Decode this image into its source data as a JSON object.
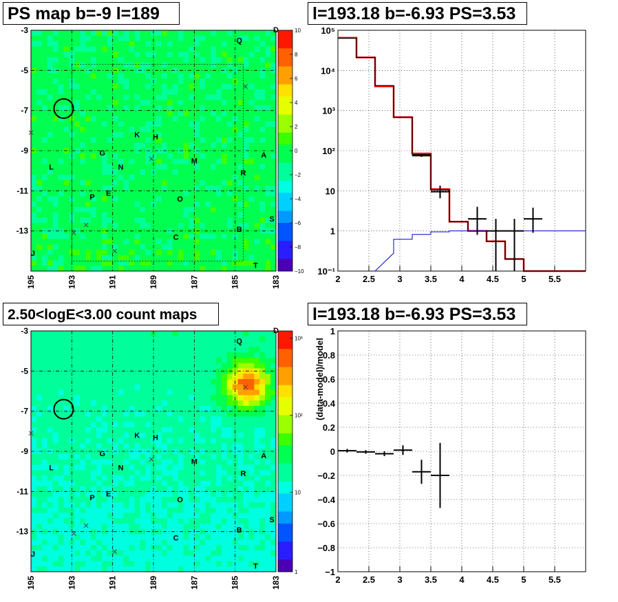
{
  "panels": {
    "ps_map": {
      "title": "PS map b=-9 l=189",
      "x_ticks": [
        "195",
        "193",
        "191",
        "189",
        "187",
        "185",
        "183"
      ],
      "y_ticks": [
        "-3",
        "-5",
        "-7",
        "-9",
        "-11",
        "-13"
      ],
      "colorbar_ticks": [
        "10",
        "8",
        "6",
        "4",
        "2",
        "0",
        "−2",
        "−4",
        "−6",
        "−8",
        "−10"
      ],
      "colorbar_letter": "D"
    },
    "count_map": {
      "title": "2.50<logE<3.00 count maps",
      "x_ticks": [
        "195",
        "193",
        "191",
        "189",
        "187",
        "185",
        "183"
      ],
      "y_ticks": [
        "-3",
        "-5",
        "-7",
        "-9",
        "-11",
        "-13"
      ],
      "colorbar_ticks": [
        "10³",
        "10²",
        "10",
        "1"
      ],
      "colorbar_letter": "D"
    },
    "spectrum": {
      "title": "l=193.18 b=-6.93 PS=3.53"
    },
    "residual": {
      "title": "l=193.18 b=-6.93 PS=3.53"
    }
  },
  "source_labels": [
    {
      "name": "Q",
      "l": 184.8,
      "b": -3.5
    },
    {
      "name": "K",
      "l": 189.8,
      "b": -8.2
    },
    {
      "name": "H",
      "l": 188.9,
      "b": -8.3
    },
    {
      "name": "M",
      "l": 187.0,
      "b": -9.5
    },
    {
      "name": "A",
      "l": 183.6,
      "b": -9.2
    },
    {
      "name": "G",
      "l": 191.5,
      "b": -9.1
    },
    {
      "name": "L",
      "l": 194.0,
      "b": -9.8
    },
    {
      "name": "N",
      "l": 190.6,
      "b": -9.8
    },
    {
      "name": "R",
      "l": 184.6,
      "b": -10.1
    },
    {
      "name": "E",
      "l": 191.2,
      "b": -11.1
    },
    {
      "name": "P",
      "l": 192.0,
      "b": -11.3
    },
    {
      "name": "O",
      "l": 187.7,
      "b": -11.4
    },
    {
      "name": "S",
      "l": 183.2,
      "b": -12.4
    },
    {
      "name": "B",
      "l": 184.8,
      "b": -12.9
    },
    {
      "name": "C",
      "l": 187.9,
      "b": -13.3
    },
    {
      "name": "J",
      "l": 194.9,
      "b": -14.1
    },
    {
      "name": "T",
      "l": 184.0,
      "b": -14.7
    }
  ],
  "chart_data": [
    {
      "type": "heatmap",
      "title": "PS map b=-9 l=189",
      "xlabel": "",
      "ylabel": "",
      "xlim": [
        195,
        183
      ],
      "ylim": [
        -15,
        -3
      ],
      "zlim": [
        -10,
        10
      ],
      "grid": true,
      "circle": {
        "l": 193.4,
        "b": -6.9
      }
    },
    {
      "type": "line",
      "title": "l=193.18 b=-6.93 PS=3.53",
      "xlim": [
        2,
        6
      ],
      "ylim": [
        0.1,
        100000
      ],
      "log_y": true,
      "grid": true,
      "y_tick_labels": [
        "10⁻¹",
        "1",
        "10",
        "10²",
        "10³",
        "10⁴",
        "10⁵"
      ],
      "x_ticks": [
        2,
        2.5,
        3,
        3.5,
        4,
        4.5,
        5,
        5.5
      ],
      "series": [
        {
          "color": "#ff0000",
          "style": "step",
          "edges": [
            2.0,
            2.3,
            2.6,
            2.9,
            3.2,
            3.5,
            3.8,
            4.1,
            4.4,
            4.7,
            5.0,
            6.0
          ],
          "values": [
            65000,
            21000,
            4000,
            680,
            85,
            11,
            1.7,
            1.0,
            0.55,
            0.2,
            0.1
          ]
        },
        {
          "color": "#000000",
          "style": "step",
          "edges": [
            2.0,
            2.3,
            2.6,
            2.9,
            3.2,
            3.5,
            3.8,
            4.1,
            4.4,
            4.7,
            5.0,
            6.0
          ],
          "values": [
            63000,
            21000,
            4200,
            680,
            80,
            10.5,
            1.7,
            1.0,
            0.55,
            0.2,
            0.1
          ]
        },
        {
          "color": "#0000cc",
          "style": "step",
          "edges": [
            2.6,
            2.9,
            3.2,
            3.5,
            3.8,
            4.1,
            4.4,
            4.7,
            5.0,
            5.3,
            6.0
          ],
          "values": [
            0.28,
            0.62,
            0.82,
            0.95,
            1.0,
            1.0,
            1.0,
            1.0,
            1.0,
            1.0
          ]
        },
        {
          "color": "#000000",
          "style": "points",
          "x": [
            3.35,
            3.65,
            4.25,
            4.55,
            4.85,
            5.15
          ],
          "y": [
            75,
            9.5,
            2.0,
            1.0,
            1.0,
            2.0
          ],
          "xerr": [
            0.15,
            0.15,
            0.15,
            0.15,
            0.15,
            0.15
          ],
          "ylow": [
            70,
            6.5,
            0.8,
            0.1,
            0.1,
            0.9
          ],
          "yhigh": [
            80,
            13.5,
            4.0,
            2.0,
            2.0,
            3.8
          ]
        }
      ]
    },
    {
      "type": "heatmap",
      "title": "2.50<logE<3.00 count maps",
      "xlabel": "",
      "ylabel": "",
      "xlim": [
        195,
        183
      ],
      "ylim": [
        -15,
        -3
      ],
      "zlim": [
        1,
        1500
      ],
      "log_z": true,
      "grid": true,
      "bright_source": {
        "l": 184.4,
        "b": -5.7
      },
      "circle": {
        "l": 193.4,
        "b": -6.9
      }
    },
    {
      "type": "scatter",
      "title": "l=193.18 b=-6.93 PS=3.53",
      "xlabel": "",
      "ylabel": "(data-model)/model",
      "xlim": [
        2,
        6
      ],
      "ylim": [
        -1,
        1
      ],
      "grid": true,
      "x_ticks": [
        2,
        2.5,
        3,
        3.5,
        4,
        4.5,
        5,
        5.5
      ],
      "y_ticks": [
        -1,
        -0.8,
        -0.6,
        -0.4,
        -0.2,
        0,
        0.2,
        0.4,
        0.6,
        0.8,
        1
      ],
      "x": [
        2.15,
        2.45,
        2.75,
        3.05,
        3.35,
        3.65
      ],
      "y": [
        0.005,
        -0.005,
        -0.02,
        0.01,
        -0.17,
        -0.2
      ],
      "xerr": [
        0.15,
        0.15,
        0.15,
        0.15,
        0.15,
        0.15
      ],
      "yerr": [
        0.015,
        0.015,
        0.02,
        0.04,
        0.1,
        0.27
      ]
    }
  ]
}
